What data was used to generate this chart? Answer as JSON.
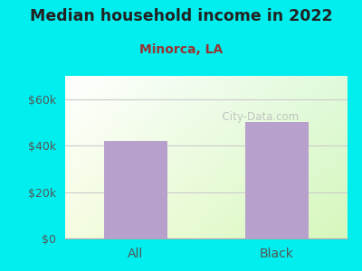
{
  "title": "Median household income in 2022",
  "subtitle": "Minorca, LA",
  "categories": [
    "All",
    "Black"
  ],
  "values": [
    42000,
    50000
  ],
  "bar_color": "#b8a0cc",
  "ylim": [
    0,
    70000
  ],
  "yticks": [
    0,
    20000,
    40000,
    60000
  ],
  "ytick_labels": [
    "$0",
    "$20k",
    "$40k",
    "$60k"
  ],
  "bg_color": "#00EEEE",
  "title_color": "#222222",
  "subtitle_color": "#993333",
  "axis_label_color": "#555555",
  "watermark_text": "  City-Data.com",
  "watermark_color": "#bbbbbb"
}
